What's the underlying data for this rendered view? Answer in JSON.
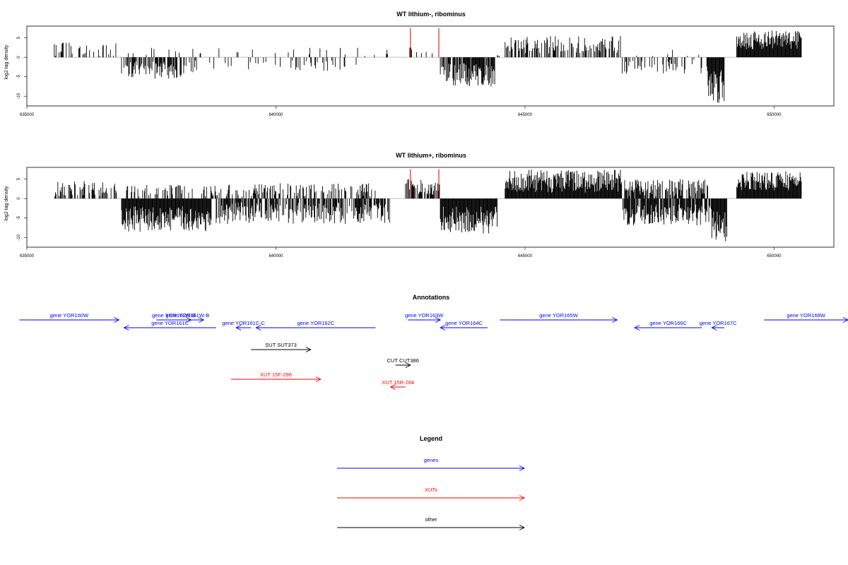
{
  "colors": {
    "gene": "#0000ff",
    "xut": "#ff0000",
    "other": "#000000",
    "highlight": "#cc0000"
  },
  "chart_data": [
    {
      "type": "bar",
      "title": "WT lithium-, ribominus",
      "ylabel": "log2 tag density",
      "xlim": [
        635000,
        651200
      ],
      "ylim": [
        -12.5,
        8
      ],
      "xticks": [
        "635000",
        "640000",
        "645000",
        "650000"
      ],
      "yticks": [
        "5",
        "0",
        "-5",
        "-10"
      ],
      "grid": false,
      "segments": [
        {
          "strand": "+",
          "start": 635550,
          "end": 636800,
          "min": 0.3,
          "max": 4.0,
          "fill": 0.25
        },
        {
          "strand": "-",
          "start": 636900,
          "end": 638200,
          "min": -5.5,
          "max": -1.0,
          "fill": 0.6
        },
        {
          "strand": "+",
          "start": 637000,
          "end": 638600,
          "min": 0.3,
          "max": 2.5,
          "fill": 0.08
        },
        {
          "strand": "-",
          "start": 638250,
          "end": 641700,
          "min": -4.0,
          "max": -0.5,
          "fill": 0.15
        },
        {
          "strand": "+",
          "start": 638700,
          "end": 642300,
          "min": 0.3,
          "max": 2.5,
          "fill": 0.05
        },
        {
          "strand": "+",
          "start": 642650,
          "end": 642750,
          "min": 1.0,
          "max": 4.0,
          "fill": 0.8
        },
        {
          "strand": "+",
          "start": 642800,
          "end": 643300,
          "min": 0.3,
          "max": 1.5,
          "fill": 0.1
        },
        {
          "strand": "-",
          "start": 643300,
          "end": 644400,
          "min": -7.5,
          "max": -1.5,
          "fill": 0.85
        },
        {
          "strand": "+",
          "start": 644400,
          "end": 644500,
          "min": 0.3,
          "max": 1.0,
          "fill": 0.2
        },
        {
          "strand": "+",
          "start": 644600,
          "end": 646950,
          "min": 1.0,
          "max": 5.5,
          "fill": 0.55
        },
        {
          "strand": "-",
          "start": 646950,
          "end": 648550,
          "min": -4.5,
          "max": -0.5,
          "fill": 0.35
        },
        {
          "strand": "+",
          "start": 647000,
          "end": 648500,
          "min": 0.3,
          "max": 2.0,
          "fill": 0.05
        },
        {
          "strand": "-",
          "start": 648650,
          "end": 649000,
          "min": -12.0,
          "max": -2.0,
          "fill": 1.0
        },
        {
          "strand": "+",
          "start": 649250,
          "end": 650550,
          "min": 2.0,
          "max": 7.0,
          "fill": 1.0
        }
      ],
      "highlights": [
        {
          "x": 642700,
          "value": 7.5
        },
        {
          "x": 643270,
          "value": 7.5
        }
      ]
    },
    {
      "type": "bar",
      "title": "WT lithium+, ribominus",
      "ylabel": "log2 tag density",
      "xlim": [
        635000,
        651200
      ],
      "ylim": [
        -12.5,
        8
      ],
      "xticks": [
        "635000",
        "640000",
        "645000",
        "650000"
      ],
      "yticks": [
        "5",
        "0",
        "-5",
        "-10"
      ],
      "grid": false,
      "segments": [
        {
          "strand": "+",
          "start": 635550,
          "end": 636800,
          "min": 0.5,
          "max": 4.5,
          "fill": 0.45
        },
        {
          "strand": "-",
          "start": 636900,
          "end": 638700,
          "min": -8.5,
          "max": -2.0,
          "fill": 1.0
        },
        {
          "strand": "+",
          "start": 637000,
          "end": 638800,
          "min": 0.5,
          "max": 3.5,
          "fill": 0.35
        },
        {
          "strand": "-",
          "start": 638800,
          "end": 642300,
          "min": -6.5,
          "max": -1.0,
          "fill": 0.7
        },
        {
          "strand": "+",
          "start": 638800,
          "end": 642000,
          "min": 0.5,
          "max": 4.0,
          "fill": 0.45
        },
        {
          "strand": "+",
          "start": 642600,
          "end": 643300,
          "min": 1.0,
          "max": 5.0,
          "fill": 0.7
        },
        {
          "strand": "-",
          "start": 643300,
          "end": 644450,
          "min": -9.0,
          "max": -2.0,
          "fill": 1.0
        },
        {
          "strand": "+",
          "start": 644600,
          "end": 646950,
          "min": 1.5,
          "max": 7.5,
          "fill": 1.0
        },
        {
          "strand": "-",
          "start": 646950,
          "end": 648750,
          "min": -7.0,
          "max": -1.5,
          "fill": 0.85
        },
        {
          "strand": "+",
          "start": 647000,
          "end": 648700,
          "min": 0.5,
          "max": 5.0,
          "fill": 0.6
        },
        {
          "strand": "-",
          "start": 648750,
          "end": 649050,
          "min": -11.0,
          "max": -3.0,
          "fill": 1.0
        },
        {
          "strand": "+",
          "start": 649250,
          "end": 650550,
          "min": 2.0,
          "max": 7.0,
          "fill": 1.0
        }
      ],
      "highlights": [
        {
          "x": 642700,
          "value": 7.5
        },
        {
          "x": 643270,
          "value": 7.5
        }
      ]
    }
  ],
  "annotations": {
    "title": "Annotations",
    "xlim": [
      635000,
      651200
    ],
    "features": [
      {
        "label": "gene YOR160W",
        "kind": "gene",
        "strand": "+",
        "start": 634850,
        "end": 636850,
        "lane": 0
      },
      {
        "label": "gene YOR161W-B",
        "kind": "gene",
        "strand": "+",
        "start": 637600,
        "end": 638300,
        "lane": 0
      },
      {
        "label": "gene YOR161W-B",
        "kind": "gene",
        "strand": "+",
        "start": 637900,
        "end": 638550,
        "lane": 0
      },
      {
        "label": "gene YOR161C",
        "kind": "gene",
        "strand": "-",
        "start": 636950,
        "end": 638800,
        "lane": 1
      },
      {
        "label": "gene YOR161C-C",
        "kind": "gene",
        "strand": "-",
        "start": 639200,
        "end": 639500,
        "lane": 1
      },
      {
        "label": "gene YOR162C",
        "kind": "gene",
        "strand": "-",
        "start": 639600,
        "end": 642000,
        "lane": 1
      },
      {
        "label": "gene YOR163W",
        "kind": "gene",
        "strand": "+",
        "start": 642650,
        "end": 643300,
        "lane": 0
      },
      {
        "label": "gene YOR164C",
        "kind": "gene",
        "strand": "-",
        "start": 643300,
        "end": 644250,
        "lane": 1
      },
      {
        "label": "gene YOR165W",
        "kind": "gene",
        "strand": "+",
        "start": 644500,
        "end": 646850,
        "lane": 0
      },
      {
        "label": "gene YOR166C",
        "kind": "gene",
        "strand": "-",
        "start": 647200,
        "end": 648550,
        "lane": 1
      },
      {
        "label": "gene YOR167C",
        "kind": "gene",
        "strand": "-",
        "start": 648750,
        "end": 649000,
        "lane": 1
      },
      {
        "label": "gene YOR168W",
        "kind": "gene",
        "strand": "+",
        "start": 649800,
        "end": 651800,
        "lane": 0
      },
      {
        "label": "SUT SUT373",
        "kind": "other",
        "strand": "+",
        "start": 639500,
        "end": 640700,
        "lane": 2
      },
      {
        "label": "CUT CUT386",
        "kind": "other",
        "strand": "+",
        "start": 642400,
        "end": 642700,
        "lane": 3
      },
      {
        "label": "XUT 15F-296",
        "kind": "xut",
        "strand": "+",
        "start": 639100,
        "end": 640900,
        "lane": 4
      },
      {
        "label": "XUT 15R-284",
        "kind": "xut",
        "strand": "-",
        "start": 642300,
        "end": 642600,
        "lane": 5
      }
    ]
  },
  "legend": {
    "title": "Legend",
    "items": [
      {
        "label": "genes",
        "kind": "gene"
      },
      {
        "label": "XUTs",
        "kind": "xut"
      },
      {
        "label": "other",
        "kind": "other"
      }
    ]
  }
}
